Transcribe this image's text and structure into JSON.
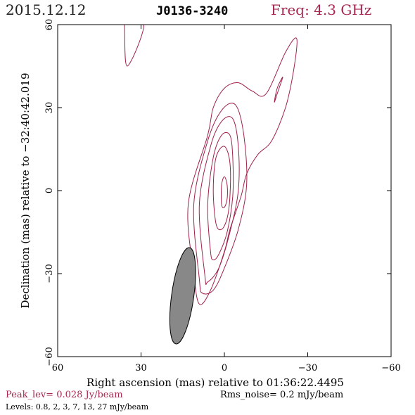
{
  "header": {
    "date": "2015.12.12",
    "source": "J0136-3240",
    "freq_label": "Freq: 4.3 GHz"
  },
  "footer": {
    "peak": "Peak_lev=  0.028 Jy/beam",
    "rms": "Rms_noise=   0.2 mJy/beam",
    "levels": "Levels: 0.8,    2,    3,    7,   13,   27 mJy/beam"
  },
  "colors": {
    "contour": "#a0204a",
    "accent_text": "#a8274f",
    "beam_fill": "#888888",
    "frame": "#000000"
  },
  "chart_data": {
    "type": "contour",
    "title": "J0136-3240",
    "xlabel": "Right ascension (mas) relative to 01:36:22.4495",
    "ylabel": "Declination (mas) relative to −32:40:42.019",
    "xlim": [
      60,
      -60
    ],
    "ylim": [
      -60,
      60
    ],
    "x_reversed": true,
    "xticks": [
      60,
      30,
      0,
      -30,
      -60
    ],
    "xtick_labels": [
      "60",
      "30",
      "0",
      "−30",
      "−60"
    ],
    "yticks": [
      -60,
      -30,
      0,
      30,
      60
    ],
    "ytick_labels": [
      "−60",
      "−30",
      "0",
      "30",
      "60"
    ],
    "grid": false,
    "peak_jy_per_beam": 0.028,
    "rms_mjy_per_beam": 0.2,
    "levels_mjy": [
      0.8,
      2,
      3,
      7,
      13,
      27
    ],
    "beam": {
      "x": 15,
      "y": -38,
      "major_mas": 35,
      "minor_mas": 8,
      "pa_deg": 8
    },
    "contours": [
      {
        "level_mjy": 0.8,
        "x": [
          11,
          13,
          6,
          4,
          0,
          -5,
          -10,
          -15,
          -22,
          -26,
          -25,
          -22,
          -17,
          -12,
          -8,
          -6,
          -2,
          0,
          5,
          9,
          11
        ],
        "y": [
          -30,
          -5,
          20,
          30,
          37,
          39,
          36,
          35,
          50,
          55,
          44,
          30,
          18,
          13,
          6,
          -2,
          -14,
          -22,
          -36,
          -41,
          -30
        ]
      },
      {
        "level_mjy": 0.8,
        "x": [
          -18,
          -19,
          -21,
          -19,
          -18
        ],
        "y": [
          32,
          37,
          41,
          35,
          32
        ]
      },
      {
        "level_mjy": 0.8,
        "x": [
          36,
          35,
          29,
          37,
          36
        ],
        "y": [
          60,
          45,
          60,
          60,
          60
        ]
      },
      {
        "level_mjy": 2,
        "x": [
          9,
          11,
          6,
          1,
          -4,
          -7,
          -8,
          -5,
          0,
          4,
          8,
          9
        ],
        "y": [
          -32,
          -5,
          18,
          29,
          31,
          20,
          2,
          -14,
          -28,
          -36,
          -37,
          -32
        ]
      },
      {
        "level_mjy": 3,
        "x": [
          7,
          9,
          5,
          1,
          -3,
          -5,
          -5,
          -2,
          2,
          6,
          7
        ],
        "y": [
          -31,
          -5,
          16,
          25,
          26,
          16,
          0,
          -15,
          -28,
          -33,
          -31
        ]
      },
      {
        "level_mjy": 7,
        "x": [
          5,
          6,
          4,
          1,
          -2,
          -3,
          -3,
          -1,
          2,
          4,
          5
        ],
        "y": [
          -22,
          -5,
          12,
          20,
          20,
          12,
          -2,
          -15,
          -23,
          -25,
          -22
        ]
      },
      {
        "level_mjy": 13,
        "x": [
          3,
          4,
          3,
          0,
          -2,
          -2,
          -1,
          1,
          3
        ],
        "y": [
          -12,
          0,
          12,
          16,
          10,
          -2,
          -10,
          -14,
          -12
        ]
      },
      {
        "level_mjy": 27,
        "x": [
          1,
          1,
          0,
          -1,
          -1,
          0,
          1
        ],
        "y": [
          -5,
          2,
          5,
          2,
          -3,
          -6,
          -5
        ]
      }
    ]
  }
}
